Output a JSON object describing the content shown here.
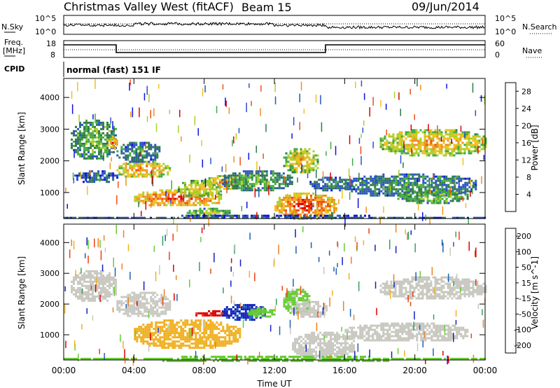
{
  "header": {
    "title": "Christmas Valley West (fitACF)",
    "beam": "Beam 15",
    "date": "09/Jun/2014"
  },
  "parameter_panels": {
    "nsky_label": "N.Sky",
    "nsearch_label": "N.Search",
    "freq_label_line1": "Freq.",
    "freq_label_line2": "[MHz]",
    "nave_label": "Nave",
    "cpid_label": "CPID",
    "cpid_value": "normal (fast) 151 IF",
    "noise_tick_top": "10^5",
    "noise_tick_bottom": "10^0",
    "freq_ticks": [
      "18",
      "8"
    ],
    "nave_ticks": [
      "60",
      "0"
    ]
  },
  "chart_data": [
    {
      "type": "heatmap",
      "name": "power",
      "xlabel": "Time UT",
      "ylabel": "Slant Range [km]",
      "xlim": [
        0,
        24
      ],
      "ylim": [
        180,
        4600
      ],
      "x_ticks": [
        "00:00",
        "04:00",
        "08:00",
        "12:00",
        "16:00",
        "20:00",
        "00:00"
      ],
      "y_ticks": [
        "1000",
        "2000",
        "3000",
        "4000"
      ],
      "colorbar": {
        "label": "Power [dB]",
        "ticks": [
          "4",
          "8",
          "12",
          "16",
          "20",
          "24",
          "28"
        ],
        "range": [
          0,
          30
        ],
        "colors": [
          "#1010e0",
          "#2a52c8",
          "#2f7a4a",
          "#44aa44",
          "#aad02a",
          "#f0c020",
          "#f09020",
          "#ee5010",
          "#dd0000"
        ]
      },
      "regions": [
        {
          "t0": 0.4,
          "t1": 3.0,
          "r0": 2100,
          "r1": 3300,
          "p": 12
        },
        {
          "t0": 0.6,
          "t1": 3.0,
          "r0": 1350,
          "r1": 1700,
          "p": 7
        },
        {
          "t0": 2.5,
          "t1": 3.0,
          "r0": 2400,
          "r1": 2800,
          "p": 22
        },
        {
          "t0": 3.0,
          "t1": 6.0,
          "r0": 1500,
          "r1": 2000,
          "p": 21
        },
        {
          "t0": 3.0,
          "t1": 5.5,
          "r0": 2000,
          "r1": 2600,
          "p": 9
        },
        {
          "t0": 4.0,
          "t1": 9.0,
          "r0": 600,
          "r1": 1100,
          "p": 24
        },
        {
          "t0": 6.5,
          "t1": 9.0,
          "r0": 900,
          "r1": 1400,
          "p": 17
        },
        {
          "t0": 7.0,
          "t1": 9.5,
          "r0": 280,
          "r1": 520,
          "p": 14
        },
        {
          "t0": 8.0,
          "t1": 10.5,
          "r0": 1150,
          "r1": 1550,
          "p": 21
        },
        {
          "t0": 9.0,
          "t1": 13.0,
          "r0": 1100,
          "r1": 1700,
          "p": 11
        },
        {
          "t0": 12.5,
          "t1": 14.5,
          "r0": 1650,
          "r1": 2400,
          "p": 18
        },
        {
          "t0": 12.0,
          "t1": 15.5,
          "r0": 200,
          "r1": 1000,
          "p": 25
        },
        {
          "t0": 14.0,
          "t1": 16.5,
          "r0": 1100,
          "r1": 1500,
          "p": 8
        },
        {
          "t0": 16.0,
          "t1": 23.5,
          "r0": 900,
          "r1": 1600,
          "p": 9
        },
        {
          "t0": 19.0,
          "t1": 23.0,
          "r0": 700,
          "r1": 1100,
          "p": 13
        },
        {
          "t0": 18.0,
          "t1": 24.0,
          "r0": 2200,
          "r1": 3000,
          "p": 19
        },
        {
          "t0": 0.0,
          "t1": 24.0,
          "r0": 180,
          "r1": 300,
          "p": 6
        }
      ]
    },
    {
      "type": "heatmap",
      "name": "velocity",
      "xlabel": "Time UT",
      "ylabel": "Slant Range [km]",
      "xlim": [
        0,
        24
      ],
      "ylim": [
        180,
        4600
      ],
      "x_ticks": [
        "00:00",
        "04:00",
        "08:00",
        "12:00",
        "16:00",
        "20:00",
        "00:00"
      ],
      "y_ticks": [
        "1000",
        "2000",
        "3000",
        "4000"
      ],
      "colorbar": {
        "label": "Velocity [m s^-1]",
        "ticks": [
          "200",
          "100",
          "50",
          "15",
          "-15",
          "-50",
          "-100",
          "-200"
        ],
        "range": [
          -250,
          250
        ],
        "colors": [
          "#dd0000",
          "#ee4010",
          "#f08020",
          "#f0b020",
          "#c8c8c0",
          "#66cc33",
          "#33a060",
          "#2060b0",
          "#1020c0"
        ]
      },
      "regions": [
        {
          "t0": 0.4,
          "t1": 3.0,
          "r0": 2100,
          "r1": 3100,
          "v": 0
        },
        {
          "t0": 3.0,
          "t1": 6.0,
          "r0": 1600,
          "r1": 2400,
          "v": 0
        },
        {
          "t0": 4.0,
          "t1": 10.0,
          "r0": 600,
          "r1": 1500,
          "v": -40
        },
        {
          "t0": 7.5,
          "t1": 9.5,
          "r0": 1600,
          "r1": 1800,
          "v": -200
        },
        {
          "t0": 9.0,
          "t1": 11.5,
          "r0": 1500,
          "r1": 2000,
          "v": 200
        },
        {
          "t0": 10.5,
          "t1": 12.0,
          "r0": 1600,
          "r1": 1900,
          "v": 40
        },
        {
          "t0": 12.5,
          "t1": 14.0,
          "r0": 1700,
          "r1": 2500,
          "v": 35
        },
        {
          "t0": 13.0,
          "t1": 15.0,
          "r0": 1600,
          "r1": 2100,
          "v": 0
        },
        {
          "t0": 13.0,
          "t1": 16.5,
          "r0": 250,
          "r1": 1100,
          "v": 0
        },
        {
          "t0": 16.0,
          "t1": 23.0,
          "r0": 800,
          "r1": 1400,
          "v": 0
        },
        {
          "t0": 18.0,
          "t1": 24.0,
          "r0": 2200,
          "r1": 2900,
          "v": 0
        },
        {
          "t0": 0.0,
          "t1": 24.0,
          "r0": 180,
          "r1": 320,
          "v": 40
        }
      ]
    }
  ],
  "colors": {
    "background": "#ffffff",
    "axes": "#000000",
    "noise_trace": "#000000"
  }
}
